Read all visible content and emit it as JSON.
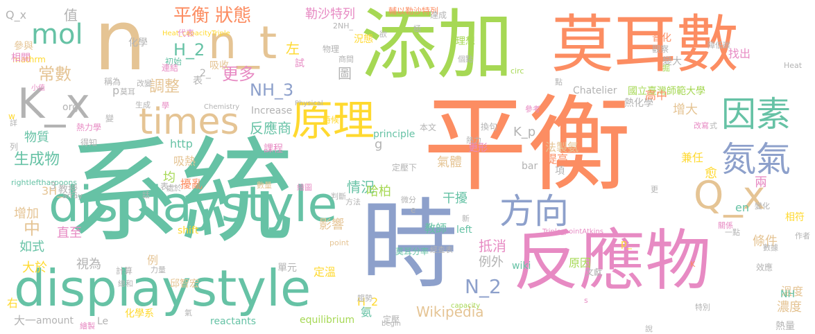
{
  "palette": {
    "green": "#66c2a5",
    "orange": "#fc8d62",
    "blue": "#8da0cb",
    "pink": "#e78ac3",
    "lime": "#a6d854",
    "yellow": "#ffd92f",
    "tan": "#e5c494",
    "gray": "#b3b3b3"
  },
  "words": [
    {
      "text": "系統",
      "color": "green"
    },
    {
      "text": "平衡",
      "color": "orange"
    },
    {
      "text": "n",
      "color": "tan"
    },
    {
      "text": "添加",
      "color": "lime"
    },
    {
      "text": "莫耳數",
      "color": "orange"
    },
    {
      "text": "時",
      "color": "blue"
    },
    {
      "text": "反應物",
      "color": "pink"
    },
    {
      "text": "displaystyle",
      "color": "green"
    },
    {
      "text": "K_x",
      "color": "gray"
    },
    {
      "text": "n_t",
      "color": "tan"
    },
    {
      "text": "times",
      "color": "tan"
    },
    {
      "text": "原理",
      "color": "yellow"
    },
    {
      "text": "因素",
      "color": "green"
    },
    {
      "text": "氮氣",
      "color": "blue"
    },
    {
      "text": "方向",
      "color": "blue"
    },
    {
      "text": "Q_x",
      "color": "tan"
    },
    {
      "text": "mol",
      "color": "green"
    },
    {
      "text": "平衡 狀態",
      "color": "orange"
    },
    {
      "text": "勒沙特列",
      "color": "pink"
    },
    {
      "text": "NH_3",
      "color": "blue"
    },
    {
      "text": "H_2",
      "color": "green"
    },
    {
      "text": "常數",
      "color": "tan"
    },
    {
      "text": "更多",
      "color": "pink"
    },
    {
      "text": "N_2",
      "color": "blue"
    },
    {
      "text": "Wikipedia",
      "color": "tan"
    },
    {
      "text": "生成物",
      "color": "green"
    },
    {
      "text": "反應商",
      "color": "green"
    },
    {
      "text": "物質",
      "color": "green"
    },
    {
      "text": "調整",
      "color": "tan"
    },
    {
      "text": "抵消",
      "color": "pink"
    },
    {
      "text": "情況",
      "color": "green"
    },
    {
      "text": "displaystyle",
      "color": "green"
    },
    {
      "text": "Q_x",
      "color": "gray"
    },
    {
      "text": "值",
      "color": "gray"
    },
    {
      "text": "左",
      "color": "yellow"
    },
    {
      "text": "圖",
      "color": "gray"
    },
    {
      "text": "增大",
      "color": "tan"
    },
    {
      "text": "K_p",
      "color": "gray"
    },
    {
      "text": "增加",
      "color": "tan"
    },
    {
      "text": "條件",
      "color": "tan"
    },
    {
      "text": "兩",
      "color": "pink"
    },
    {
      "text": "濃度",
      "color": "tan"
    },
    {
      "text": "例外",
      "color": "gray"
    },
    {
      "text": "干擾",
      "color": "green"
    },
    {
      "text": "哈柏",
      "color": "lime"
    },
    {
      "text": "影響",
      "color": "tan"
    },
    {
      "text": "中",
      "color": "tan"
    },
    {
      "text": "大於",
      "color": "yellow"
    },
    {
      "text": "如式",
      "color": "green"
    },
    {
      "text": "直至",
      "color": "pink"
    },
    {
      "text": "氣體",
      "color": "tan"
    },
    {
      "text": "en",
      "color": "green"
    },
    {
      "text": "H_2",
      "color": "yellow"
    },
    {
      "text": "化學",
      "color": "gray"
    },
    {
      "text": "表",
      "color": "gray"
    },
    {
      "text": "吸收",
      "color": "tan"
    },
    {
      "text": "時候",
      "color": "yellow"
    },
    {
      "text": "http",
      "color": "green"
    },
    {
      "text": "Increase",
      "color": "gray"
    },
    {
      "text": "邱智宏",
      "color": "tan"
    },
    {
      "text": "Chatelier",
      "color": "gray"
    },
    {
      "text": "國立臺灣師範大學",
      "color": "lime"
    },
    {
      "text": "熱化學",
      "color": "gray"
    },
    {
      "text": "equilibrium",
      "color": "lime"
    },
    {
      "text": "reactants",
      "color": "green"
    },
    {
      "text": "wiki",
      "color": "green"
    },
    {
      "text": "bar",
      "color": "gray"
    },
    {
      "text": "amount",
      "color": "gray"
    },
    {
      "text": "Le",
      "color": "gray"
    },
    {
      "text": "left",
      "color": "green"
    },
    {
      "text": "shift",
      "color": "yellow"
    },
    {
      "text": "principle",
      "color": "green"
    },
    {
      "text": "rightleftharpoons",
      "color": "green"
    },
    {
      "text": "Heat_capacityTriple",
      "color": "yellow"
    },
    {
      "text": "mathrm",
      "color": "yellow"
    },
    {
      "text": "Triple_pointAtkins",
      "color": "pink"
    },
    {
      "text": "capacity",
      "color": "lime"
    },
    {
      "text": "begin",
      "color": "gray"
    },
    {
      "text": "array",
      "color": "gray"
    },
    {
      "text": "Chemistry",
      "color": "gray"
    },
    {
      "text": "Physical",
      "color": "gray"
    },
    {
      "text": "point",
      "color": "tan"
    },
    {
      "text": "circ",
      "color": "lime"
    },
    {
      "text": "Heat",
      "color": "gray"
    },
    {
      "text": "2NH_",
      "color": "gray"
    },
    {
      "text": "3H_",
      "color": "tan"
    },
    {
      "text": "教授",
      "color": "gray"
    },
    {
      "text": "教師",
      "color": "green"
    },
    {
      "text": "法製氨",
      "color": "tan"
    },
    {
      "text": "提高",
      "color": "orange"
    },
    {
      "text": "兼任",
      "color": "yellow"
    },
    {
      "text": "高中",
      "color": "orange"
    },
    {
      "text": "熱量",
      "color": "gray"
    },
    {
      "text": "溫度",
      "color": "tan"
    },
    {
      "text": "普化",
      "color": "orange"
    },
    {
      "text": "觀察",
      "color": "gray"
    },
    {
      "text": "變大",
      "color": "gray"
    },
    {
      "text": "理想",
      "color": "lime"
    },
    {
      "text": "況態",
      "color": "yellow"
    },
    {
      "text": "輔以勒沙特列",
      "color": "orange"
    },
    {
      "text": "達成",
      "color": "gray"
    },
    {
      "text": "代表",
      "color": "pink"
    },
    {
      "text": "初始",
      "color": "green"
    },
    {
      "text": "連結",
      "color": "pink"
    },
    {
      "text": "稱為",
      "color": "gray"
    },
    {
      "text": "參與",
      "color": "tan"
    },
    {
      "text": "相關",
      "color": "pink"
    },
    {
      "text": "小值",
      "color": "pink"
    },
    {
      "text": "熱力學",
      "color": "pink"
    },
    {
      "text": "得知",
      "color": "gray"
    },
    {
      "text": "課程",
      "color": "pink"
    },
    {
      "text": "吸熱",
      "color": "tan"
    },
    {
      "text": "均",
      "color": "lime"
    },
    {
      "text": "擾亂",
      "color": "orange"
    },
    {
      "text": "處於",
      "color": "gray"
    },
    {
      "text": "數量",
      "color": "tan"
    },
    {
      "text": "繪圖",
      "color": "pink"
    },
    {
      "text": "判斷",
      "color": "gray"
    },
    {
      "text": "方法",
      "color": "gray"
    },
    {
      "text": "微分",
      "color": "gray"
    },
    {
      "text": "莫耳分率",
      "color": "green"
    },
    {
      "text": "經查表",
      "color": "gray"
    },
    {
      "text": "單元",
      "color": "gray"
    },
    {
      "text": "定溫",
      "color": "yellow"
    },
    {
      "text": "定壓",
      "color": "gray"
    },
    {
      "text": "趨勢",
      "color": "gray"
    },
    {
      "text": "繪製",
      "color": "pink"
    },
    {
      "text": "化學系",
      "color": "yellow"
    },
    {
      "text": "大一",
      "color": "gray"
    },
    {
      "text": "右",
      "color": "yellow"
    },
    {
      "text": "視為",
      "color": "gray"
    },
    {
      "text": "計算",
      "color": "gray"
    },
    {
      "text": "總和",
      "color": "gray"
    },
    {
      "text": "力量",
      "color": "gray"
    },
    {
      "text": "氣",
      "color": "gray"
    },
    {
      "text": "原因",
      "color": "lime"
    },
    {
      "text": "文獻",
      "color": "gray"
    },
    {
      "text": "效應",
      "color": "gray"
    },
    {
      "text": "愈",
      "color": "yellow"
    },
    {
      "text": "項",
      "color": "gray"
    },
    {
      "text": "定壓下",
      "color": "gray"
    },
    {
      "text": "更形",
      "color": "pink"
    },
    {
      "text": "換句",
      "color": "gray"
    },
    {
      "text": "熱力",
      "color": "gray"
    },
    {
      "text": "本文",
      "color": "gray"
    },
    {
      "text": "參考",
      "color": "pink"
    },
    {
      "text": "改寫",
      "color": "pink"
    },
    {
      "text": "作者",
      "color": "gray"
    },
    {
      "text": "相符",
      "color": "yellow"
    },
    {
      "text": "數據",
      "color": "gray"
    },
    {
      "text": "關係",
      "color": "pink"
    },
    {
      "text": "一點",
      "color": "gray"
    },
    {
      "text": "變化",
      "color": "gray"
    },
    {
      "text": "說",
      "color": "gray"
    },
    {
      "text": "特別",
      "color": "gray"
    },
    {
      "text": "更",
      "color": "gray"
    },
    {
      "text": "障低碳",
      "color": "gray"
    },
    {
      "text": "找出",
      "color": "pink"
    },
    {
      "text": "掘",
      "color": "lime"
    },
    {
      "text": "點",
      "color": "gray"
    },
    {
      "text": "個點",
      "color": "gray"
    },
    {
      "text": "商間",
      "color": "gray"
    },
    {
      "text": "物理",
      "color": "gray"
    },
    {
      "text": "試",
      "color": "pink"
    },
    {
      "text": "欲",
      "color": "gray"
    },
    {
      "text": "極",
      "color": "gray"
    },
    {
      "text": "式",
      "color": "gray"
    },
    {
      "text": "改變",
      "color": "gray"
    },
    {
      "text": "變",
      "color": "gray"
    },
    {
      "text": "列",
      "color": "gray"
    },
    {
      "text": "詳",
      "color": "gray"
    },
    {
      "text": "w",
      "color": "yellow"
    },
    {
      "text": "生成",
      "color": "gray"
    },
    {
      "text": "學",
      "color": "pink"
    },
    {
      "text": "莫耳",
      "color": "gray"
    },
    {
      "text": "話",
      "color": "gray"
    },
    {
      "text": "表一",
      "color": "gray"
    },
    {
      "text": "例",
      "color": "tan"
    },
    {
      "text": "org",
      "color": "gray"
    },
    {
      "text": "p",
      "color": "gray"
    },
    {
      "text": "p_",
      "color": "yellow"
    },
    {
      "text": "g",
      "color": "gray"
    },
    {
      "text": "s",
      "color": "pink"
    },
    {
      "text": "e",
      "color": "gray"
    },
    {
      "text": "2_",
      "color": "gray"
    },
    {
      "text": "3",
      "color": "gray"
    },
    {
      "text": "新",
      "color": "gray"
    },
    {
      "text": "NH",
      "color": "green"
    },
    {
      "text": "K",
      "color": "orange"
    },
    {
      "text": "氨",
      "color": "green"
    }
  ]
}
